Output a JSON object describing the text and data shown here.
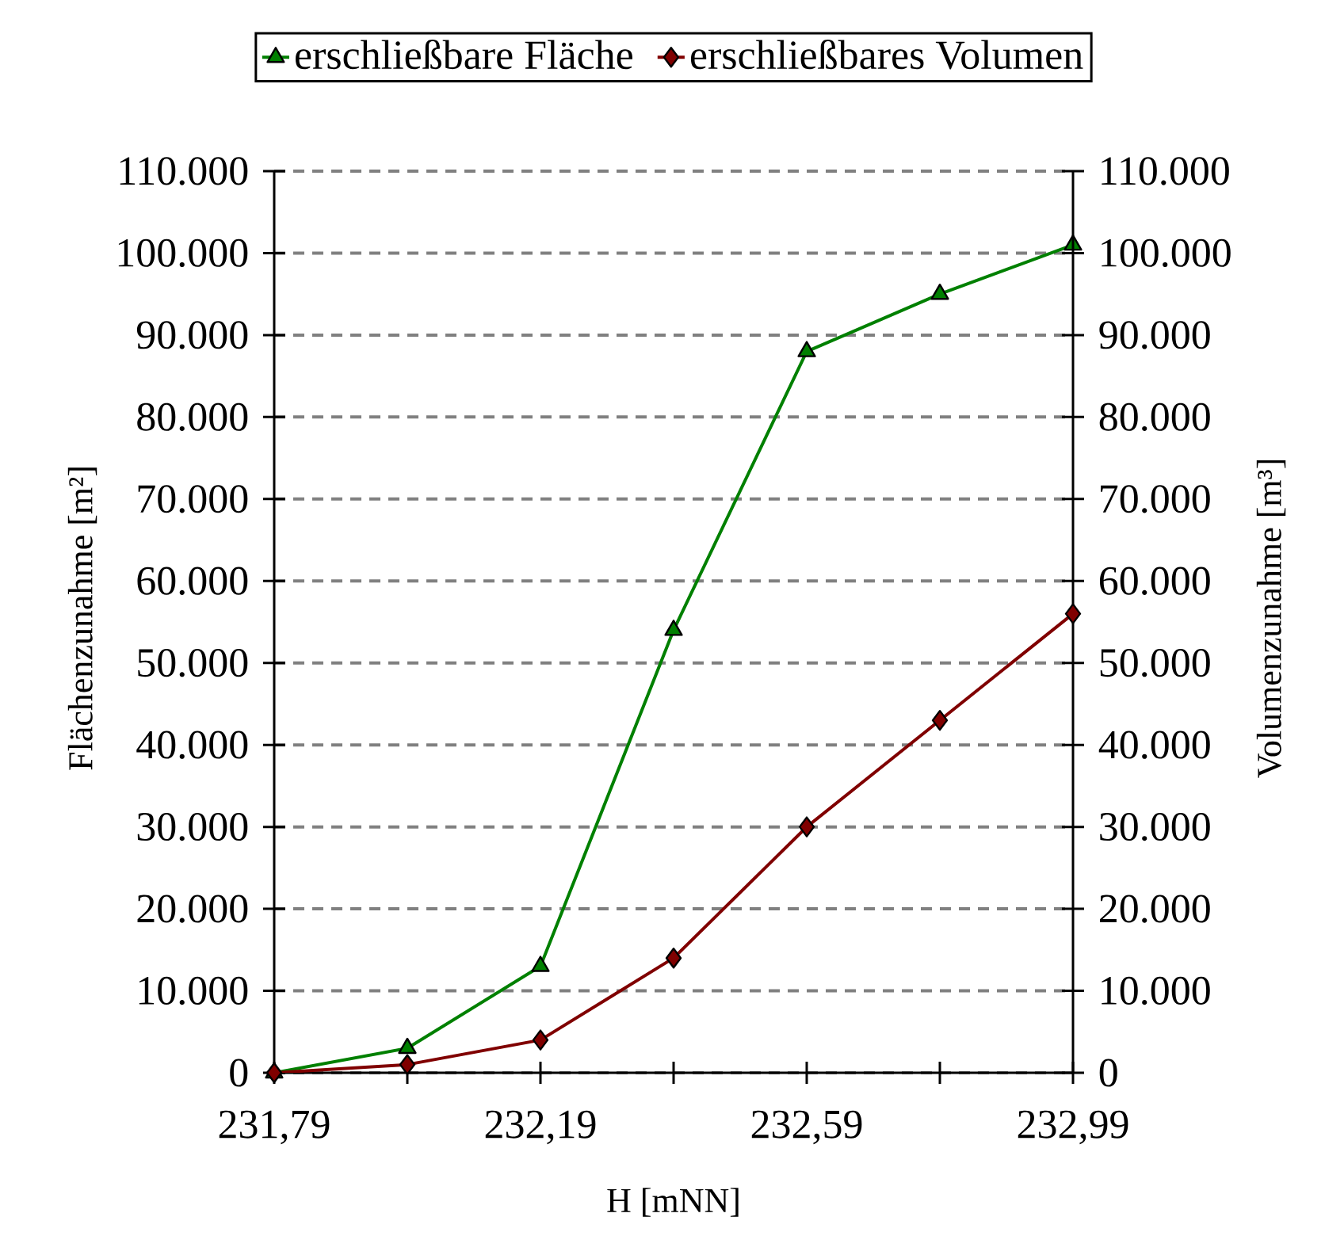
{
  "chart_data": {
    "type": "line",
    "xlabel": "H [mNN]",
    "ylabel": "Flächenzunahme [m²]",
    "y2label": "Volumenzunahme [m³]",
    "x": [
      231.79,
      231.99,
      232.19,
      232.39,
      232.59,
      232.79,
      232.99
    ],
    "series": [
      {
        "name": "erschließbare Fläche",
        "color": "#008000",
        "marker": "triangle",
        "values": [
          0,
          3000,
          13000,
          54000,
          88000,
          95000,
          101000
        ]
      },
      {
        "name": "erschließbares Volumen",
        "color": "#800000",
        "marker": "diamond",
        "axis": "y2",
        "values": [
          0,
          1000,
          4000,
          14000,
          30000,
          43000,
          56000
        ]
      }
    ],
    "xlim": [
      231.79,
      232.99
    ],
    "xticks": [
      {
        "value": 231.79,
        "label": "231,79"
      },
      {
        "value": 231.99,
        "label": null
      },
      {
        "value": 232.19,
        "label": "232,19"
      },
      {
        "value": 232.39,
        "label": null
      },
      {
        "value": 232.59,
        "label": "232,59"
      },
      {
        "value": 232.79,
        "label": null
      },
      {
        "value": 232.99,
        "label": "232,99"
      }
    ],
    "ylim": [
      0,
      110000
    ],
    "yticks": [
      0,
      {
        "value": 10000,
        "label": "10.000"
      },
      {
        "value": 20000,
        "label": "20.000"
      },
      {
        "value": 30000,
        "label": "30.000"
      },
      {
        "value": 40000,
        "label": "40.000"
      },
      {
        "value": 50000,
        "label": "50.000"
      },
      {
        "value": 60000,
        "label": "60.000"
      },
      {
        "value": 70000,
        "label": "70.000"
      },
      {
        "value": 80000,
        "label": "80.000"
      },
      {
        "value": 90000,
        "label": "90.000"
      },
      {
        "value": 100000,
        "label": "100.000"
      },
      {
        "value": 110000,
        "label": "110.000"
      }
    ],
    "y2lim": [
      0,
      110000
    ],
    "y2ticks": [
      0,
      {
        "value": 10000,
        "label": "10.000"
      },
      {
        "value": 20000,
        "label": "20.000"
      },
      {
        "value": 30000,
        "label": "30.000"
      },
      {
        "value": 40000,
        "label": "40.000"
      },
      {
        "value": 50000,
        "label": "50.000"
      },
      {
        "value": 60000,
        "label": "60.000"
      },
      {
        "value": 70000,
        "label": "70.000"
      },
      {
        "value": 80000,
        "label": "80.000"
      },
      {
        "value": 90000,
        "label": "90.000"
      },
      {
        "value": 100000,
        "label": "100.000"
      },
      {
        "value": 110000,
        "label": "110.000"
      }
    ],
    "grid": "y",
    "legend": "top",
    "line_style": "solid"
  }
}
